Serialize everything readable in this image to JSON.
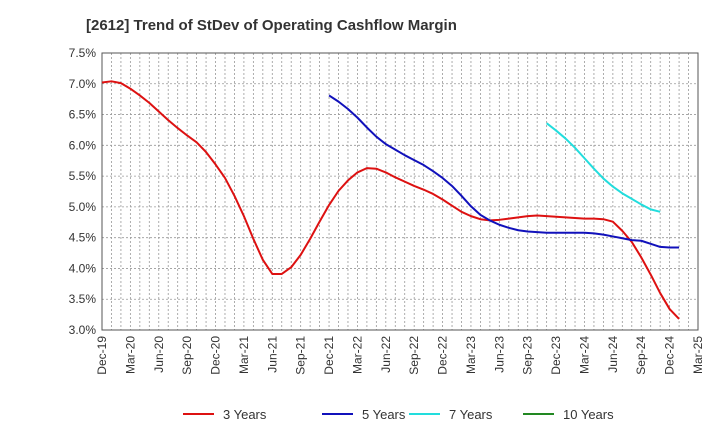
{
  "chart_data": {
    "type": "line",
    "title": "[2612]  Trend of StDev of Operating Cashflow Margin",
    "xlabel": "",
    "ylabel": "",
    "x_labels": [
      "Dec-19",
      "Mar-20",
      "Jun-20",
      "Sep-20",
      "Dec-20",
      "Mar-21",
      "Jun-21",
      "Sep-21",
      "Dec-21",
      "Mar-22",
      "Jun-22",
      "Sep-22",
      "Dec-22",
      "Mar-23",
      "Jun-23",
      "Sep-23",
      "Dec-23",
      "Mar-24",
      "Jun-24",
      "Sep-24",
      "Dec-24",
      "Mar-25"
    ],
    "y_ticks": [
      "3.0%",
      "3.5%",
      "4.0%",
      "4.5%",
      "5.0%",
      "5.5%",
      "6.0%",
      "6.5%",
      "7.0%",
      "7.5%"
    ],
    "ylim": [
      3.0,
      7.5
    ],
    "grid": true,
    "legend_position": "bottom",
    "series": [
      {
        "name": "3 Years",
        "color": "#dd1111",
        "values": [
          7.02,
          7.04,
          7.01,
          6.92,
          6.81,
          6.69,
          6.55,
          6.41,
          6.28,
          6.16,
          6.05,
          5.89,
          5.69,
          5.47,
          5.18,
          4.85,
          4.48,
          4.14,
          3.91,
          3.91,
          4.02,
          4.22,
          4.48,
          4.76,
          5.03,
          5.26,
          5.43,
          5.56,
          5.63,
          5.62,
          5.56,
          5.48,
          5.41,
          5.34,
          5.28,
          5.21,
          5.12,
          5.02,
          4.92,
          4.85,
          4.8,
          4.78,
          4.79,
          4.81,
          4.83,
          4.85,
          4.86,
          4.85,
          4.84,
          4.83,
          4.82,
          4.81,
          4.81,
          4.8,
          4.76,
          4.61,
          4.43,
          4.18,
          3.9,
          3.6,
          3.34,
          3.18
        ]
      },
      {
        "name": "5 Years",
        "color": "#1111bb",
        "values": [
          null,
          null,
          null,
          null,
          null,
          null,
          null,
          null,
          null,
          null,
          null,
          null,
          null,
          null,
          null,
          null,
          null,
          null,
          null,
          null,
          null,
          null,
          null,
          null,
          6.81,
          6.71,
          6.59,
          6.45,
          6.29,
          6.14,
          6.02,
          5.93,
          5.84,
          5.76,
          5.68,
          5.58,
          5.47,
          5.34,
          5.18,
          5.01,
          4.87,
          4.78,
          4.71,
          4.66,
          4.62,
          4.6,
          4.59,
          4.58,
          4.58,
          4.58,
          4.58,
          4.58,
          4.57,
          4.55,
          4.52,
          4.49,
          4.46,
          4.45,
          4.4,
          4.35,
          4.34,
          4.34
        ]
      },
      {
        "name": "7 Years",
        "color": "#22dddd",
        "values": [
          null,
          null,
          null,
          null,
          null,
          null,
          null,
          null,
          null,
          null,
          null,
          null,
          null,
          null,
          null,
          null,
          null,
          null,
          null,
          null,
          null,
          null,
          null,
          null,
          null,
          null,
          null,
          null,
          null,
          null,
          null,
          null,
          null,
          null,
          null,
          null,
          null,
          null,
          null,
          null,
          null,
          null,
          null,
          null,
          null,
          null,
          null,
          6.36,
          6.24,
          6.11,
          5.96,
          5.79,
          5.62,
          5.46,
          5.33,
          5.22,
          5.13,
          5.04,
          4.96,
          4.92,
          null,
          null
        ]
      },
      {
        "name": "10 Years",
        "color": "#228822",
        "values": []
      }
    ]
  }
}
